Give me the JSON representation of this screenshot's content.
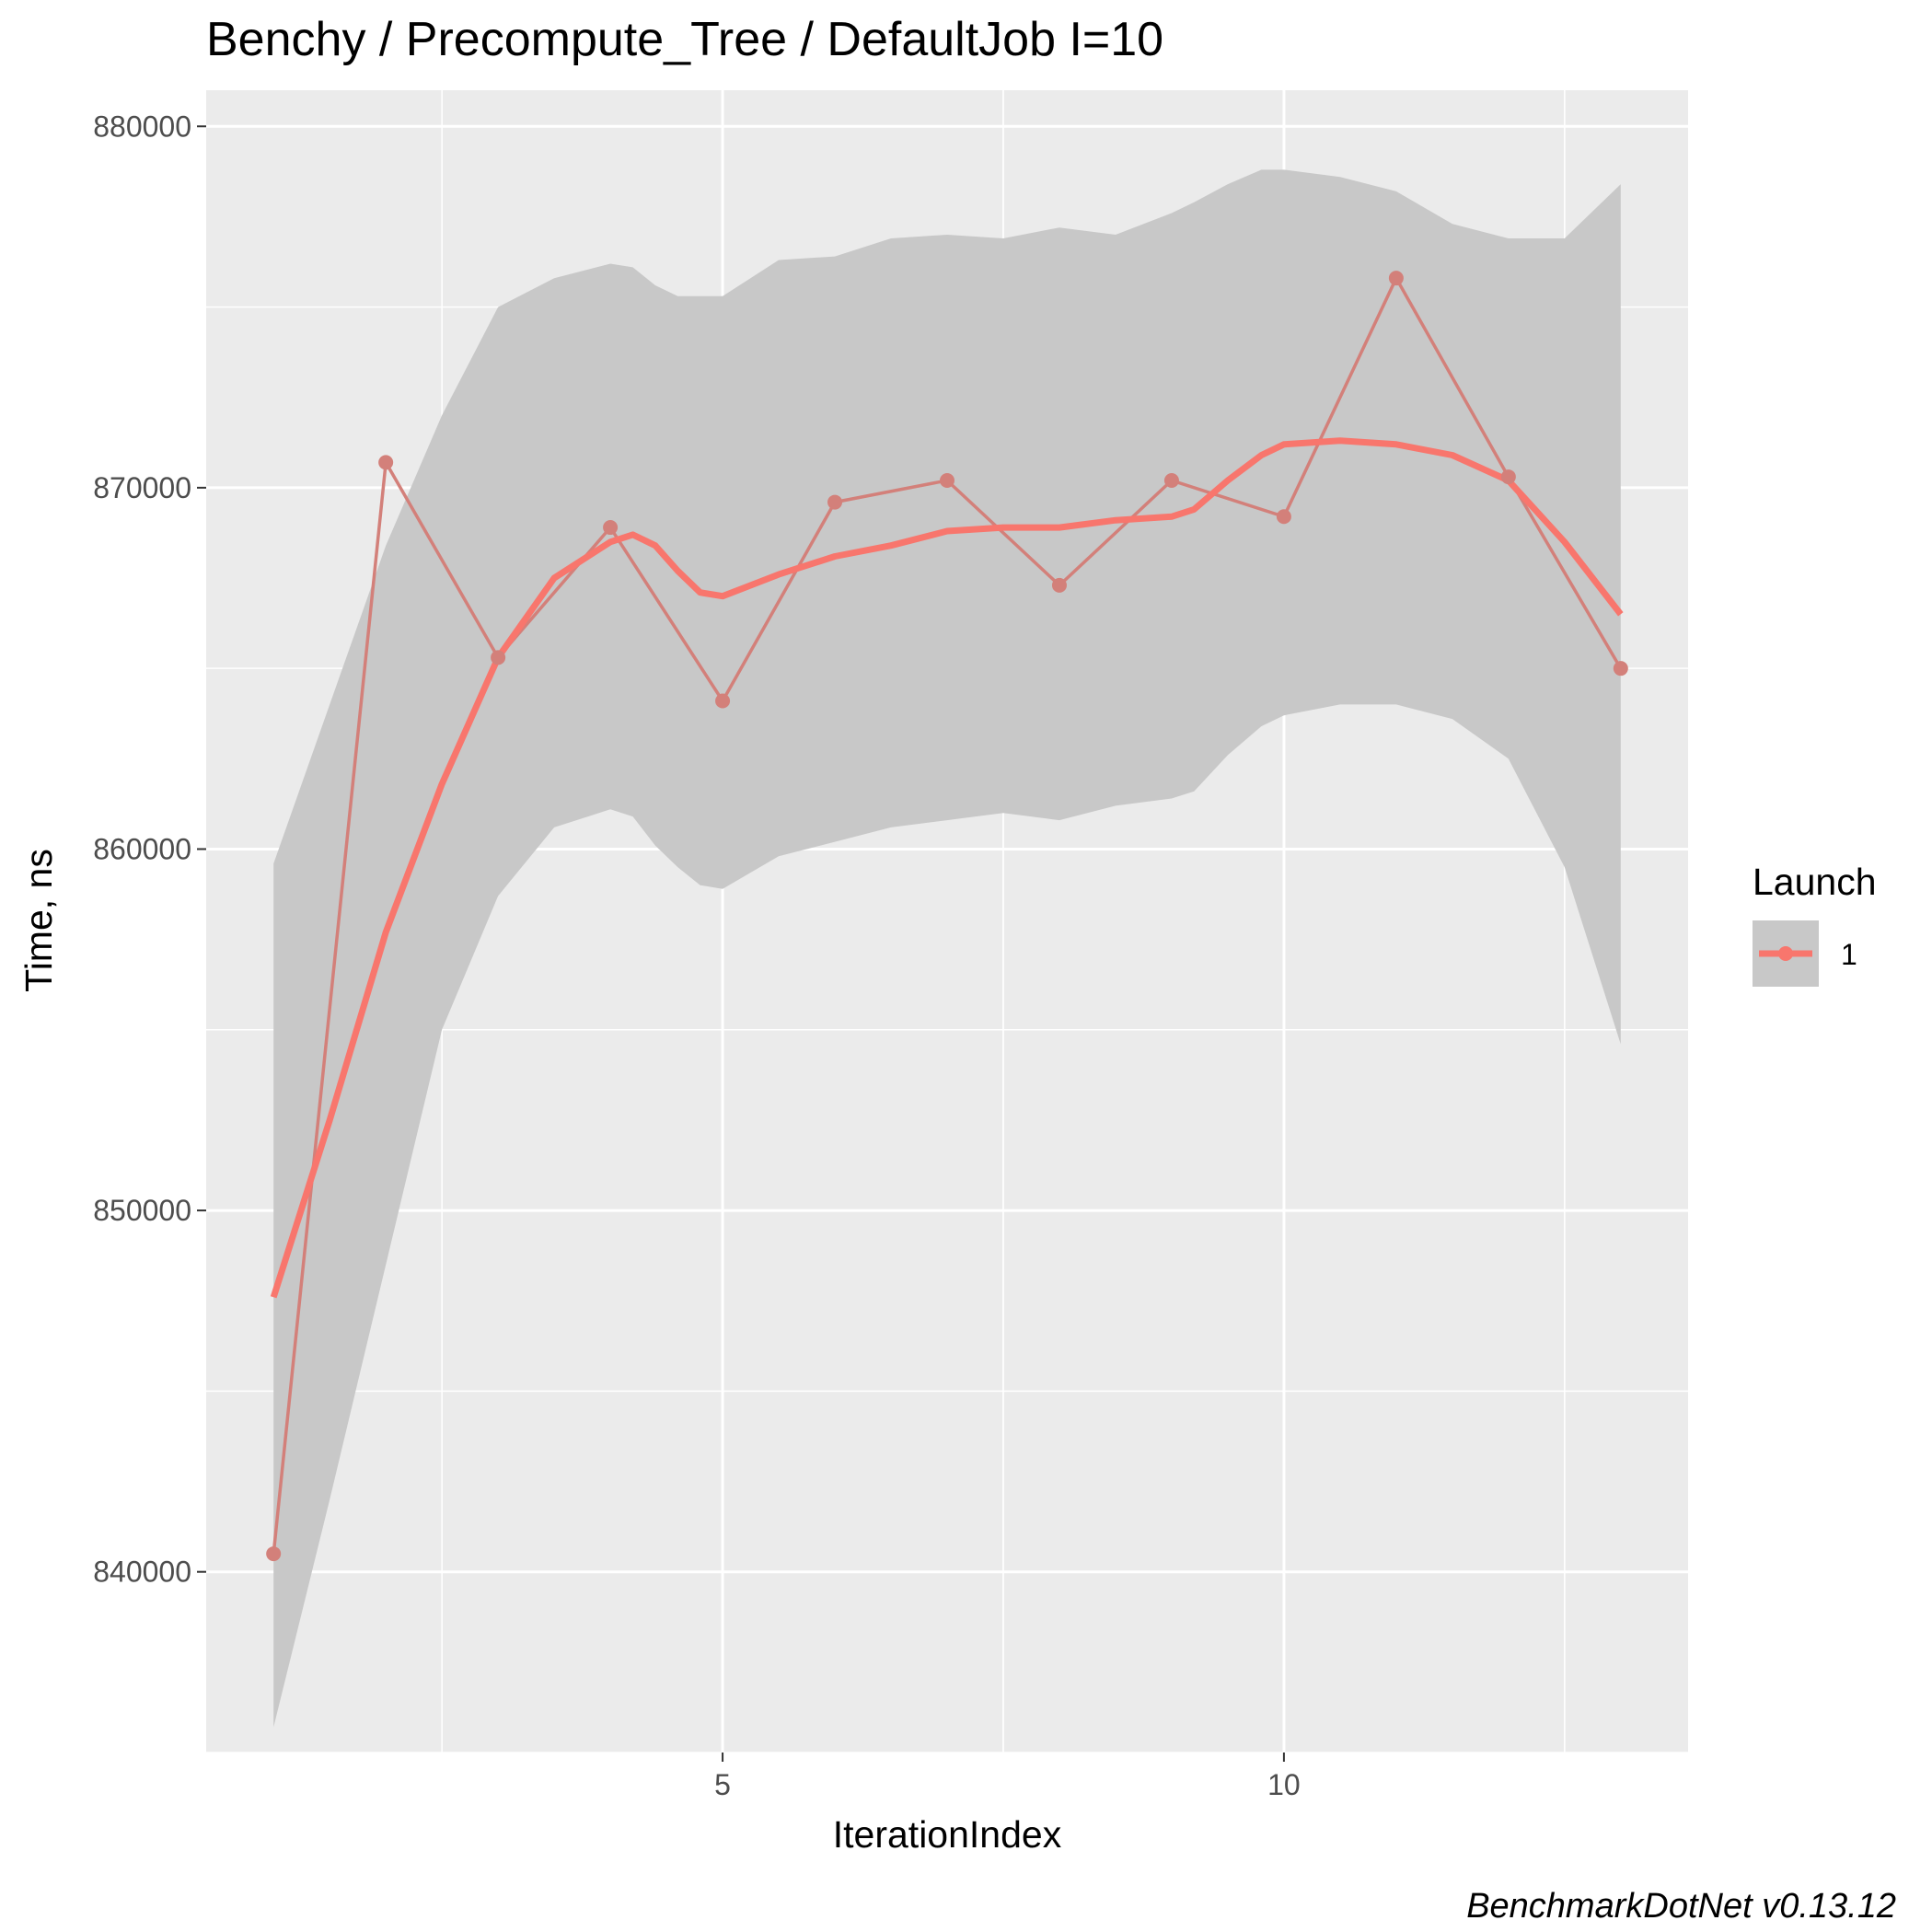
{
  "chart_data": {
    "type": "line",
    "title": "Benchy / Precompute_Tree / DefaultJob I=10",
    "xlabel": "IterationIndex",
    "ylabel": "Time, ns",
    "caption": "BenchmarkDotNet v0.13.12",
    "xlim": [
      0.4,
      13.6
    ],
    "ylim": [
      835000,
      881000
    ],
    "x_ticks": [
      5,
      10
    ],
    "y_ticks": [
      840000,
      850000,
      860000,
      870000,
      880000
    ],
    "grid": true,
    "legend": {
      "title": "Launch",
      "position": "right",
      "entries": [
        "1"
      ]
    },
    "colors": {
      "series": "#F8766D",
      "raw_line": "#D3807A",
      "band": "#C8C8C8",
      "panel": "#EBEBEB",
      "grid": "#FFFFFF"
    },
    "series": [
      {
        "name": "1",
        "x": [
          1,
          2,
          3,
          4,
          5,
          6,
          7,
          8,
          9,
          10,
          11,
          12,
          13
        ],
        "values": [
          840500,
          870700,
          865300,
          868900,
          864100,
          869600,
          870200,
          867300,
          870200,
          869200,
          875800,
          870300,
          865000
        ]
      }
    ],
    "smooth": {
      "x": [
        1,
        1.5,
        2,
        2.5,
        3,
        3.5,
        4,
        4.2,
        4.4,
        4.6,
        4.8,
        5,
        5.5,
        6,
        6.5,
        7,
        7.5,
        8,
        8.5,
        9,
        9.2,
        9.5,
        9.8,
        10,
        10.5,
        11,
        11.5,
        12,
        12.5,
        13
      ],
      "values": [
        847600,
        852500,
        857700,
        861800,
        865300,
        867500,
        868500,
        868700,
        868400,
        867700,
        867100,
        867000,
        867600,
        868100,
        868400,
        868800,
        868900,
        868900,
        869100,
        869200,
        869400,
        870200,
        870900,
        871200,
        871300,
        871200,
        870900,
        870200,
        868500,
        866500
      ],
      "upper": [
        859600,
        864000,
        868400,
        872000,
        875000,
        875800,
        876200,
        876100,
        875600,
        875300,
        875300,
        875300,
        876300,
        876400,
        876900,
        877000,
        876900,
        877200,
        877000,
        877600,
        877900,
        878400,
        878800,
        878800,
        878600,
        878200,
        877300,
        876900,
        876900,
        878400
      ],
      "lower": [
        835700,
        842000,
        848500,
        855000,
        858700,
        860600,
        861100,
        860900,
        860100,
        859500,
        859000,
        858900,
        859800,
        860200,
        860600,
        860800,
        861000,
        860800,
        861200,
        861400,
        861600,
        862600,
        863400,
        863700,
        864000,
        864000,
        863600,
        862500,
        859500,
        854600
      ]
    }
  }
}
